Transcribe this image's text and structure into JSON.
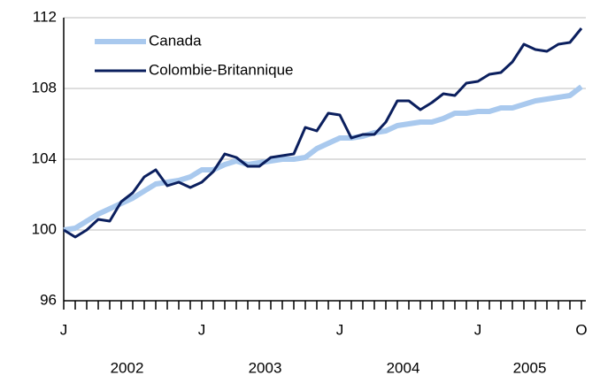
{
  "chart_data": {
    "type": "line",
    "categories": [
      "J",
      null,
      null,
      null,
      null,
      null,
      null,
      null,
      null,
      null,
      null,
      null,
      "J",
      null,
      null,
      null,
      null,
      null,
      null,
      null,
      null,
      null,
      null,
      null,
      "J",
      null,
      null,
      null,
      null,
      null,
      null,
      null,
      null,
      null,
      null,
      null,
      "J",
      null,
      null,
      null,
      null,
      null,
      null,
      null,
      null,
      "O"
    ],
    "year_labels": [
      "2002",
      "2003",
      "2004",
      "2005"
    ],
    "series": [
      {
        "name": "Canada",
        "color": "#a9c9ee",
        "values": [
          100.0,
          100.1,
          100.5,
          100.9,
          101.2,
          101.5,
          101.8,
          102.2,
          102.6,
          102.7,
          102.8,
          103.0,
          103.4,
          103.4,
          103.7,
          103.9,
          103.7,
          103.8,
          103.9,
          104.0,
          104.0,
          104.1,
          104.6,
          104.9,
          105.2,
          105.2,
          105.3,
          105.5,
          105.6,
          105.9,
          106.0,
          106.1,
          106.1,
          106.3,
          106.6,
          106.6,
          106.7,
          106.7,
          106.9,
          106.9,
          107.1,
          107.3,
          107.4,
          107.5,
          107.6,
          108.1
        ]
      },
      {
        "name": "Colombie-Britannique",
        "color": "#0b1f5e",
        "values": [
          100.0,
          99.6,
          100.0,
          100.6,
          100.5,
          101.6,
          102.1,
          103.0,
          103.4,
          102.5,
          102.7,
          102.4,
          102.7,
          103.3,
          104.3,
          104.1,
          103.6,
          103.6,
          104.1,
          104.2,
          104.3,
          105.8,
          105.6,
          106.6,
          106.5,
          105.2,
          105.4,
          105.4,
          106.1,
          107.3,
          107.3,
          106.8,
          107.2,
          107.7,
          107.6,
          108.3,
          108.4,
          108.8,
          108.9,
          109.5,
          110.5,
          110.2,
          110.1,
          110.5,
          110.6,
          111.4
        ]
      }
    ],
    "ylim": [
      96,
      112
    ],
    "yticks": [
      96,
      100,
      104,
      108,
      112
    ],
    "grid": true
  }
}
